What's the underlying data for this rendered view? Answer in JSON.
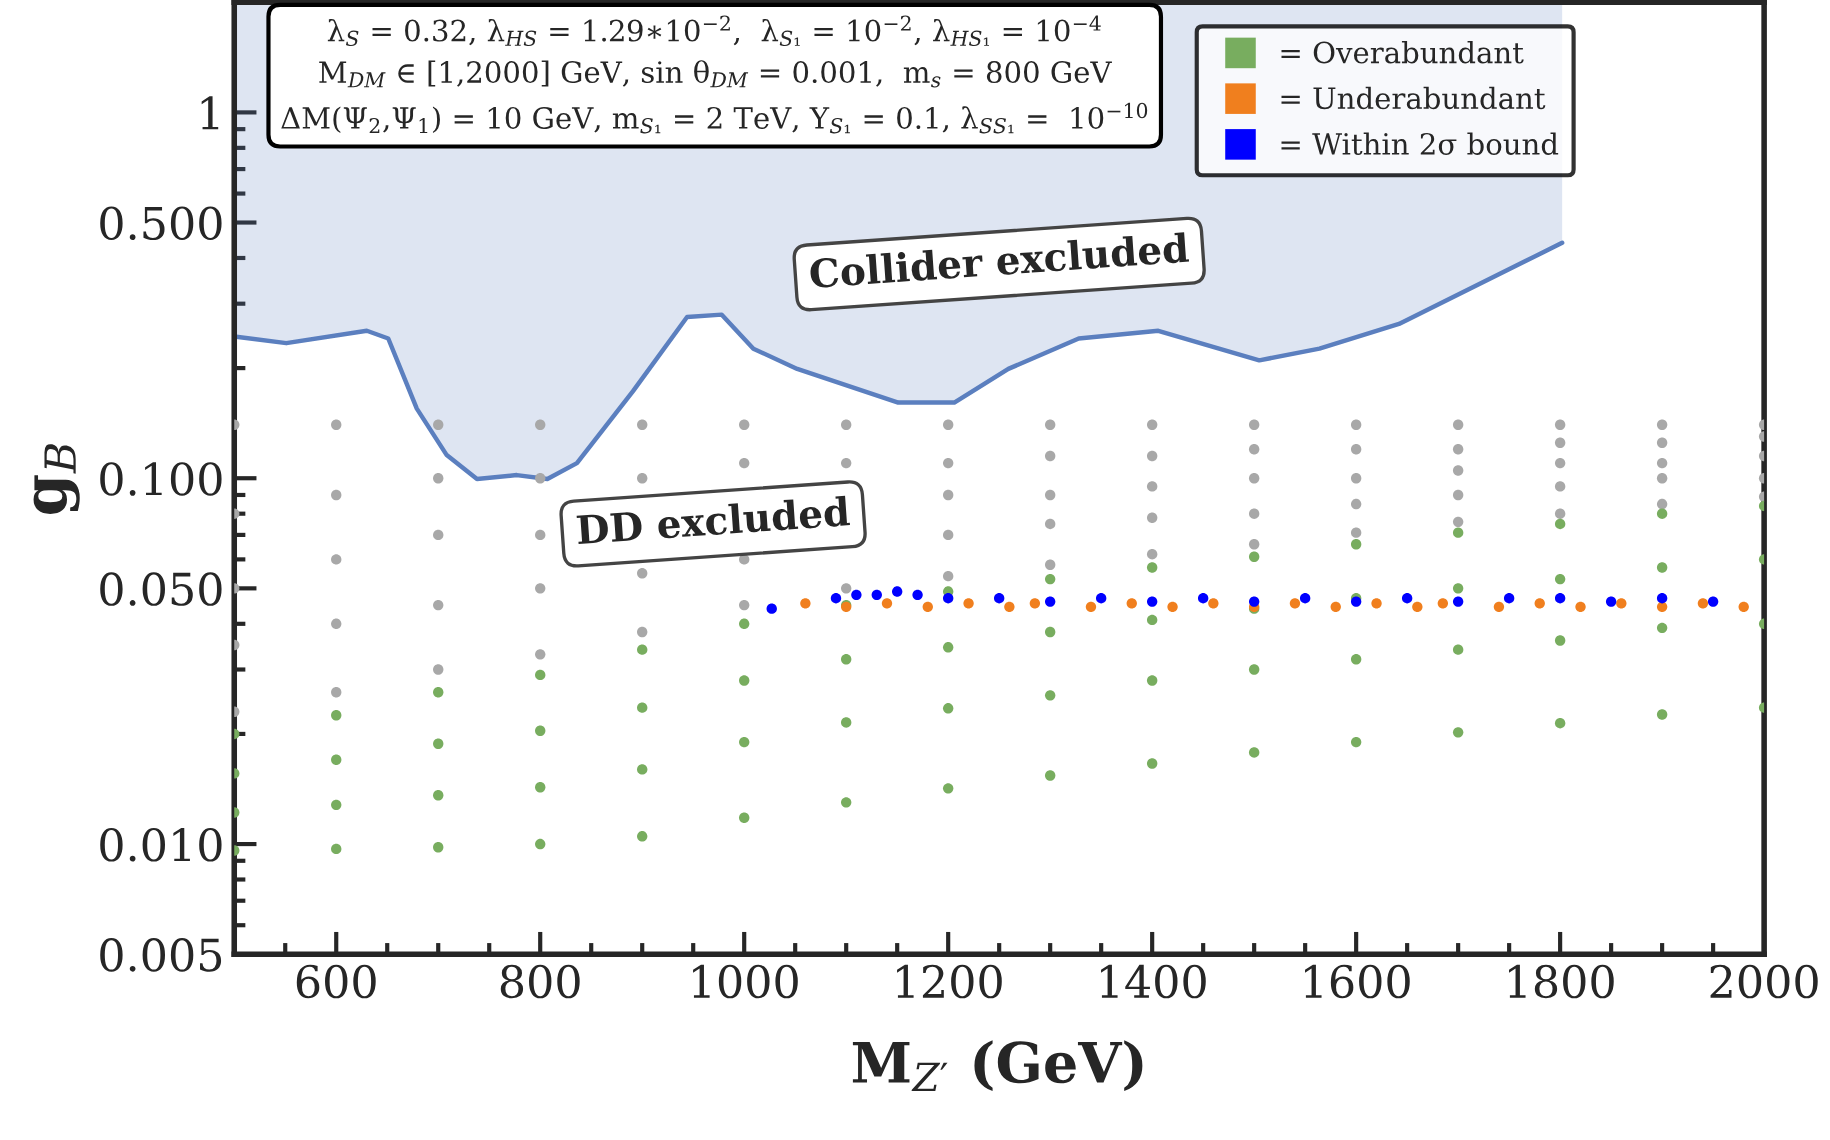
{
  "chart_data": {
    "type": "scatter",
    "xlabel": "M$_{Z′}$ (GeV)",
    "ylabel": "g$_{B}$",
    "log": "y",
    "xlim": [
      500,
      2000
    ],
    "ylim": [
      0.005,
      2
    ],
    "xticks": [
      600,
      800,
      1000,
      1200,
      1400,
      1600,
      1800,
      2000
    ],
    "yticks": [
      {
        "value": 0.005,
        "label": "0.005"
      },
      {
        "value": 0.01,
        "label": "0.010"
      },
      {
        "value": 0.05,
        "label": "0.050"
      },
      {
        "value": 0.1,
        "label": "0.100"
      },
      {
        "value": 0.5,
        "label": "0.500"
      },
      1
    ],
    "legend": "top right",
    "grid": false,
    "annotations": [
      "λ$_{S}$ = 0.32, λ$_{HS}$ = 1.29∗10$^{−2}$,  λ$_{S₁}$ = 10$^{−2}$, λ$_{HS₁}$ = 10$^{−4}$\nM$_{DM}$ ∈ [1,2000] GeV, sin θ$_{DM}$ = 0.001,  m$_{s}$ = 800 GeV\nΔM(Ψ$_{2}$,Ψ$_{1}$) = 10 GeV, m$_{S₁}$ = 2 TeV, Y$_{S₁}$ = 0.1, λ$_{SS₁}$ =  10$^{−10}$",
      "Collider excluded",
      "DD excluded"
    ],
    "series": [
      {
        "type": "line",
        "color": "#5b7fbf",
        "x": [
          500,
          551,
          630,
          651,
          679,
          708,
          738,
          777,
          807,
          836,
          891,
          944,
          978,
          1009,
          1052,
          1151,
          1206,
          1259,
          1328,
          1406,
          1505,
          1564,
          1642,
          1802
        ],
        "values": [
          0.244,
          0.234,
          0.253,
          0.241,
          0.155,
          0.116,
          0.0995,
          0.102,
          0.0995,
          0.11,
          0.173,
          0.276,
          0.28,
          0.226,
          0.199,
          0.161,
          0.161,
          0.199,
          0.241,
          0.253,
          0.21,
          0.226,
          0.264,
          0.44
        ],
        "lower": [
          0.244,
          0.234,
          0.253,
          0.241,
          0.155,
          0.116,
          0.0995,
          0.102,
          0.0995,
          0.11,
          0.173,
          0.276,
          0.28,
          0.226,
          0.199,
          0.161,
          0.161,
          0.199,
          0.241,
          0.253,
          0.21,
          0.226,
          0.264,
          0.44
        ],
        "upper": [
          2,
          2,
          2,
          2,
          2,
          2,
          2,
          2,
          2,
          2,
          2,
          2,
          2,
          2,
          2,
          2,
          2,
          2,
          2,
          2,
          2,
          2,
          2,
          2
        ]
      },
      {
        "marker": "circle",
        "color": "#a8a8a8",
        "x": [
          500,
          500,
          500,
          500,
          500,
          600,
          600,
          600,
          600,
          600,
          700,
          700,
          700,
          700,
          700,
          800,
          800,
          800,
          800,
          800,
          900,
          900,
          900,
          900,
          1000,
          1000,
          1000,
          1000,
          1100,
          1100,
          1100,
          1200,
          1200,
          1200,
          1200,
          1200,
          1300,
          1300,
          1300,
          1300,
          1300,
          1400,
          1400,
          1400,
          1400,
          1400,
          1500,
          1500,
          1500,
          1500,
          1500,
          1600,
          1600,
          1600,
          1600,
          1600,
          1700,
          1700,
          1700,
          1700,
          1700,
          1800,
          1800,
          1800,
          1800,
          1800,
          1900,
          1900,
          1900,
          1900,
          1900,
          2000,
          2000,
          2000,
          2000,
          2000
        ],
        "values": [
          0.14,
          0.08,
          0.05,
          0.035,
          0.023,
          0.14,
          0.09,
          0.06,
          0.04,
          0.026,
          0.14,
          0.1,
          0.07,
          0.045,
          0.03,
          0.14,
          0.1,
          0.07,
          0.05,
          0.033,
          0.14,
          0.1,
          0.055,
          0.038,
          0.14,
          0.11,
          0.06,
          0.045,
          0.14,
          0.11,
          0.05,
          0.14,
          0.11,
          0.09,
          0.07,
          0.054,
          0.14,
          0.115,
          0.09,
          0.075,
          0.058,
          0.14,
          0.115,
          0.095,
          0.078,
          0.062,
          0.14,
          0.12,
          0.1,
          0.08,
          0.066,
          0.14,
          0.12,
          0.1,
          0.085,
          0.071,
          0.14,
          0.12,
          0.105,
          0.09,
          0.076,
          0.14,
          0.125,
          0.11,
          0.095,
          0.08,
          0.14,
          0.125,
          0.11,
          0.1,
          0.085,
          0.14,
          0.13,
          0.115,
          0.1,
          0.089
        ]
      },
      {
        "marker": "circle",
        "name": "= Overabundant",
        "color": "#78ad5f",
        "x": [
          500,
          500,
          500,
          500,
          600,
          600,
          600,
          600,
          700,
          700,
          700,
          700,
          800,
          800,
          800,
          800,
          900,
          900,
          900,
          900,
          1000,
          1000,
          1000,
          1000,
          1100,
          1100,
          1100,
          1100,
          1200,
          1200,
          1200,
          1200,
          1300,
          1300,
          1300,
          1300,
          1400,
          1400,
          1400,
          1400,
          1500,
          1500,
          1500,
          1500,
          1600,
          1600,
          1600,
          1600,
          1700,
          1700,
          1700,
          1700,
          1800,
          1800,
          1800,
          1800,
          1900,
          1900,
          1900,
          1900,
          2000,
          2000,
          2000,
          2000
        ],
        "values": [
          0.02,
          0.0156,
          0.0122,
          0.0096,
          0.0225,
          0.017,
          0.0128,
          0.0097,
          0.026,
          0.0188,
          0.0136,
          0.0098,
          0.029,
          0.0204,
          0.0143,
          0.01,
          0.034,
          0.0236,
          0.016,
          0.0105,
          0.04,
          0.028,
          0.019,
          0.0118,
          0.045,
          0.032,
          0.0215,
          0.013,
          0.049,
          0.0345,
          0.0235,
          0.0142,
          0.053,
          0.038,
          0.0255,
          0.0154,
          0.057,
          0.041,
          0.028,
          0.0166,
          0.061,
          0.044,
          0.03,
          0.0178,
          0.066,
          0.047,
          0.032,
          0.019,
          0.071,
          0.05,
          0.034,
          0.0202,
          0.075,
          0.053,
          0.036,
          0.0214,
          0.08,
          0.057,
          0.039,
          0.0226,
          0.084,
          0.06,
          0.04,
          0.0236
        ]
      },
      {
        "marker": "circle",
        "name": "= Underabundant",
        "color": "#f07f1e",
        "x": [
          1060,
          1100,
          1140,
          1180,
          1220,
          1260,
          1285,
          1340,
          1380,
          1420,
          1460,
          1500,
          1540,
          1580,
          1620,
          1660,
          1685,
          1740,
          1780,
          1820,
          1860,
          1900,
          1940,
          1980
        ],
        "values": [
          0.0455,
          0.0445,
          0.0455,
          0.0445,
          0.0455,
          0.0445,
          0.0455,
          0.0445,
          0.0455,
          0.0445,
          0.0455,
          0.0445,
          0.0455,
          0.0445,
          0.0455,
          0.0445,
          0.0455,
          0.0445,
          0.0455,
          0.0445,
          0.0455,
          0.0445,
          0.0455,
          0.0445
        ]
      },
      {
        "marker": "circle",
        "name": "= Within 2σ bound",
        "color": "#0000ff",
        "x": [
          1027,
          1090,
          1110,
          1130,
          1150,
          1170,
          1200,
          1250,
          1300,
          1350,
          1400,
          1450,
          1500,
          1550,
          1600,
          1650,
          1700,
          1750,
          1800,
          1850,
          1900,
          1950
        ],
        "values": [
          0.044,
          0.047,
          0.048,
          0.048,
          0.049,
          0.048,
          0.047,
          0.047,
          0.046,
          0.047,
          0.046,
          0.047,
          0.046,
          0.047,
          0.046,
          0.047,
          0.046,
          0.047,
          0.047,
          0.046,
          0.047,
          0.046
        ]
      }
    ]
  }
}
